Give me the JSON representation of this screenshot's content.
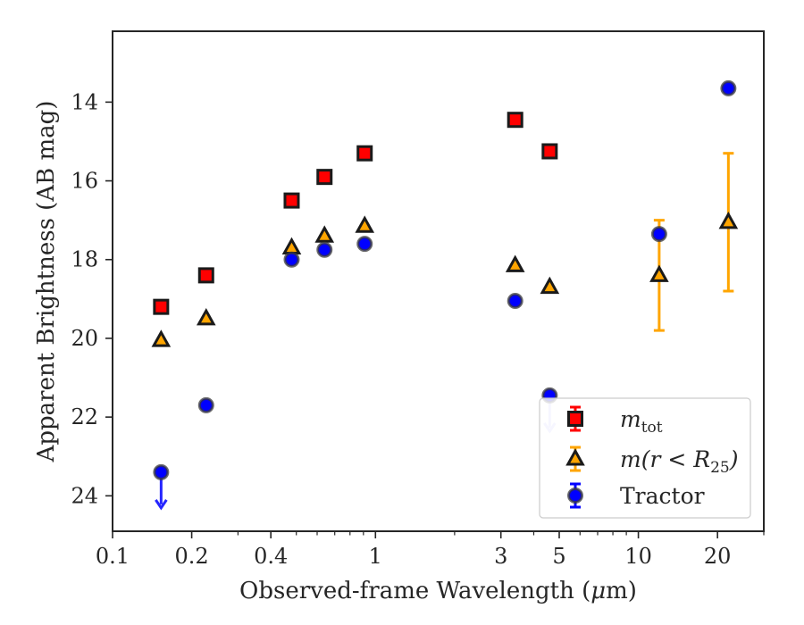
{
  "chart_data": {
    "type": "scatter",
    "xlabel_pre": "Observed-frame Wavelength (",
    "xlabel_mu": "μ",
    "xlabel_post": "m)",
    "ylabel": "Apparent Brightness (AB mag)",
    "x_scale": "log",
    "y_inverted": true,
    "xlim": [
      0.1,
      30
    ],
    "ylim": [
      12.2,
      24.9
    ],
    "grid": false,
    "legend_position": "lower-right",
    "x_ticks": [
      {
        "value": 0.1,
        "label": "0.1"
      },
      {
        "value": 0.2,
        "label": "0.2"
      },
      {
        "value": 0.4,
        "label": "0.4"
      },
      {
        "value": 1,
        "label": "1"
      },
      {
        "value": 3,
        "label": "3"
      },
      {
        "value": 5,
        "label": "5"
      },
      {
        "value": 10,
        "label": "10"
      },
      {
        "value": 20,
        "label": "20"
      }
    ],
    "x_minor_ticks": [
      0.3,
      0.5,
      0.6,
      0.7,
      0.8,
      0.9,
      2,
      4,
      6,
      7,
      8,
      9,
      30
    ],
    "y_ticks": [
      {
        "value": 14,
        "label": "14"
      },
      {
        "value": 16,
        "label": "16"
      },
      {
        "value": 18,
        "label": "18"
      },
      {
        "value": 20,
        "label": "20"
      },
      {
        "value": 22,
        "label": "22"
      },
      {
        "value": 24,
        "label": "24"
      }
    ],
    "series": [
      {
        "legend_main": "m",
        "legend_sub": "tot",
        "marker": "square",
        "color": "#ff0000",
        "edge": "#1a1a1a",
        "points": [
          {
            "x": 0.153,
            "y": 19.2
          },
          {
            "x": 0.227,
            "y": 18.4
          },
          {
            "x": 0.48,
            "y": 16.5
          },
          {
            "x": 0.64,
            "y": 15.9
          },
          {
            "x": 0.91,
            "y": 15.3
          },
          {
            "x": 3.4,
            "y": 14.45
          },
          {
            "x": 4.6,
            "y": 15.25
          }
        ]
      },
      {
        "legend_main": "m(r < R",
        "legend_sub": "25",
        "legend_tail": ")",
        "marker": "triangle",
        "color": "#ffa500",
        "edge": "#1a1a1a",
        "points": [
          {
            "x": 0.153,
            "y": 20.05
          },
          {
            "x": 0.227,
            "y": 19.5
          },
          {
            "x": 0.48,
            "y": 17.7
          },
          {
            "x": 0.64,
            "y": 17.4
          },
          {
            "x": 0.91,
            "y": 17.15
          },
          {
            "x": 3.4,
            "y": 18.15
          },
          {
            "x": 4.6,
            "y": 18.7
          },
          {
            "x": 12.0,
            "y": 18.4,
            "yerr": 1.4
          },
          {
            "x": 22.0,
            "y": 17.05,
            "yerr": 1.75
          }
        ]
      },
      {
        "legend_main": "Tractor",
        "marker": "circle",
        "color": "#0000ff",
        "edge": "#3a3a3a",
        "points": [
          {
            "x": 0.153,
            "y": 23.4,
            "upper_limit": true
          },
          {
            "x": 0.227,
            "y": 21.7
          },
          {
            "x": 0.48,
            "y": 18.0
          },
          {
            "x": 0.64,
            "y": 17.75
          },
          {
            "x": 0.91,
            "y": 17.6
          },
          {
            "x": 3.4,
            "y": 19.05
          },
          {
            "x": 4.6,
            "y": 21.45,
            "upper_limit": true
          },
          {
            "x": 12.0,
            "y": 17.35
          },
          {
            "x": 22.0,
            "y": 13.65
          }
        ]
      }
    ]
  }
}
